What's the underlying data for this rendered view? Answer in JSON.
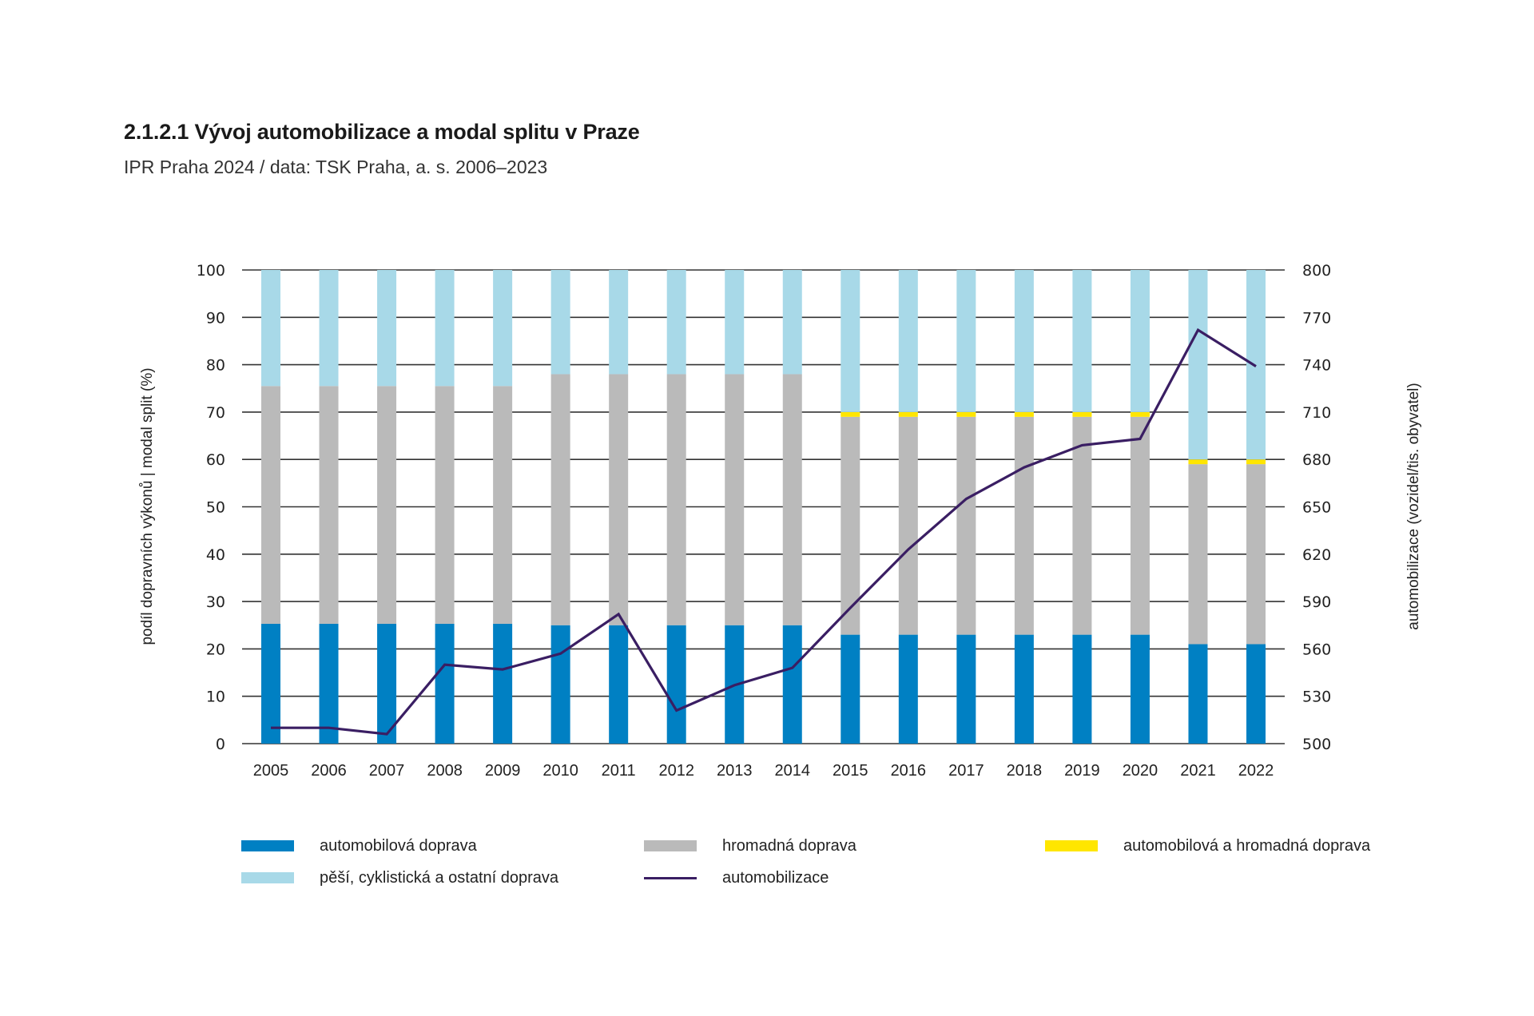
{
  "header": {
    "title": "2.1.2.1 Vývoj automobilizace a modal splitu v Praze",
    "subtitle": "IPR Praha 2024 / data: TSK Praha, a. s. 2006–2023"
  },
  "colors": {
    "car": "#0080c3",
    "public": "#bababa",
    "car_and_public": "#ffe600",
    "active": "#a8d9e8",
    "motorization": "#3a1e63",
    "grid": "#333333"
  },
  "chart_data": {
    "type": "bar",
    "stacked": true,
    "title": "2.1.2.1 Vývoj automobilizace a modal splitu v Praze",
    "subtitle": "IPR Praha 2024 / data: TSK Praha, a. s. 2006–2023",
    "xlabel": "",
    "ylabel": "podíl dopravních výkonů | modal split (%)",
    "y2label": "automobilizace (vozidel/tis. obyvatel)",
    "ylim": [
      0,
      100
    ],
    "y2lim": [
      500,
      800
    ],
    "yticks": [
      0,
      10,
      20,
      30,
      40,
      50,
      60,
      70,
      80,
      90,
      100
    ],
    "y2ticks": [
      500,
      530,
      560,
      590,
      620,
      650,
      680,
      710,
      740,
      770,
      800
    ],
    "grid": true,
    "legend_position": "bottom",
    "categories": [
      "2005",
      "2006",
      "2007",
      "2008",
      "2009",
      "2010",
      "2011",
      "2012",
      "2013",
      "2014",
      "2015",
      "2016",
      "2017",
      "2018",
      "2019",
      "2020",
      "2021",
      "2022"
    ],
    "series": [
      {
        "name": "automobilová doprava",
        "key": "car",
        "type": "bar",
        "values": [
          25.3,
          25.3,
          25.3,
          25.3,
          25.3,
          25,
          25,
          25,
          25,
          25,
          23,
          23,
          23,
          23,
          23,
          23,
          21,
          21
        ]
      },
      {
        "name": "hromadná doprava",
        "key": "public",
        "type": "bar",
        "values": [
          50.2,
          50.2,
          50.2,
          50.2,
          50.2,
          53,
          53,
          53,
          53,
          53,
          46,
          46,
          46,
          46,
          46,
          46,
          38,
          38
        ]
      },
      {
        "name": "automobilová a hromadná doprava",
        "key": "car_and_public",
        "type": "bar",
        "values": [
          0,
          0,
          0,
          0,
          0,
          0,
          0,
          0,
          0,
          0,
          1,
          1,
          1,
          1,
          1,
          1,
          1,
          1
        ]
      },
      {
        "name": "pěší, cyklistická a ostatní doprava",
        "key": "active",
        "type": "bar",
        "values": [
          24.5,
          24.5,
          24.5,
          24.5,
          24.5,
          22,
          22,
          22,
          22,
          22,
          30,
          30,
          30,
          30,
          30,
          30,
          40,
          40
        ]
      },
      {
        "name": "automobilizace",
        "key": "motorization",
        "type": "line",
        "axis": "right",
        "values": [
          510,
          510,
          506,
          550,
          547,
          557,
          582,
          521,
          537,
          548,
          586,
          623,
          655,
          675,
          689,
          693,
          762,
          739
        ]
      }
    ]
  },
  "legend": [
    {
      "label": "automobilová doprava",
      "key": "car",
      "kind": "swatch"
    },
    {
      "label": "hromadná doprava",
      "key": "public",
      "kind": "swatch"
    },
    {
      "label": "automobilová a hromadná doprava",
      "key": "car_and_public",
      "kind": "swatch"
    },
    {
      "label": "pěší, cyklistická a ostatní doprava",
      "key": "active",
      "kind": "swatch"
    },
    {
      "label": "automobilizace",
      "key": "motorization",
      "kind": "line"
    }
  ]
}
